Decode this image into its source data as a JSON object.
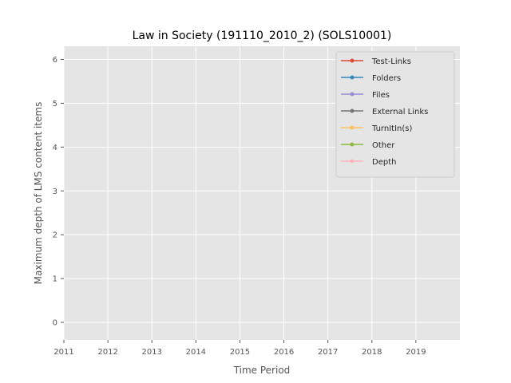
{
  "chart_data": {
    "type": "line",
    "title": "Law in Society (191110_2010_2) (SOLS10001)",
    "xlabel": "Time Period",
    "ylabel": "Maximum depth of LMS content items",
    "xlim": [
      2011,
      2020
    ],
    "ylim": [
      -0.4,
      6.3
    ],
    "x_ticks": [
      2011,
      2012,
      2013,
      2014,
      2015,
      2016,
      2017,
      2018,
      2019
    ],
    "y_ticks": [
      0,
      1,
      2,
      3,
      4,
      5,
      6
    ],
    "grid": true,
    "legend_position": "top-right",
    "series": [
      {
        "name": "Test-Links",
        "color": "#E24A33",
        "points": []
      },
      {
        "name": "Folders",
        "color": "#348ABD",
        "points": []
      },
      {
        "name": "Files",
        "color": "#988ED5",
        "points": []
      },
      {
        "name": "External Links",
        "color": "#777777",
        "points": []
      },
      {
        "name": "TurnItIn(s)",
        "color": "#FBC15E",
        "points": []
      },
      {
        "name": "Other",
        "color": "#8EBA42",
        "points": []
      },
      {
        "name": "Depth",
        "color": "#FFB5B8",
        "points": []
      }
    ]
  }
}
